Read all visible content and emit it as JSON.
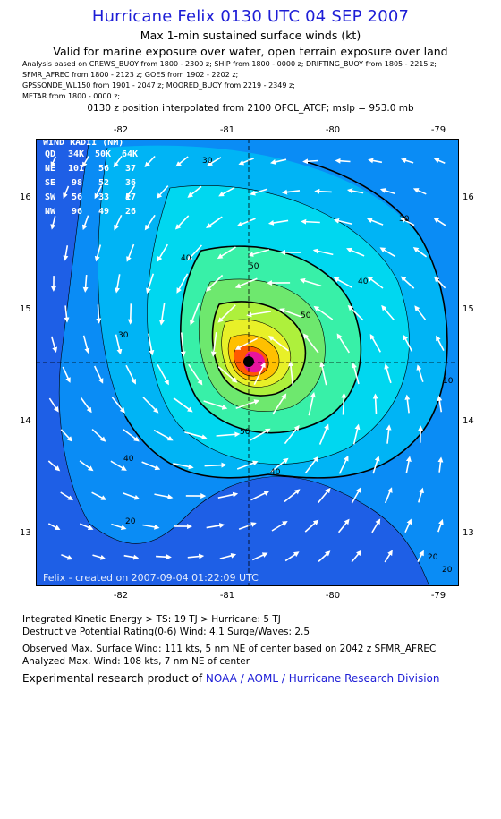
{
  "header": {
    "title": "Hurricane Felix 0130 UTC 04 SEP 2007",
    "subtitle": "Max 1-min sustained surface winds (kt)",
    "validity": "Valid for marine exposure over water, open terrain exposure over land",
    "sources": [
      "Analysis based on  CREWS_BUOY from 1800 - 2300 z;  SHIP from 1800 - 0000 z;  DRIFTING_BUOY from 1805 - 2215 z;",
      "SFMR_AFREC from 1800 - 2123 z;  GOES from 1902 - 2202 z;",
      "GPSSONDE_WL150 from 1901 - 2047 z;  MOORED_BUOY from 2219 - 2349 z;",
      "METAR from 1800 - 0000 z;"
    ],
    "position_note": "0130 z position interpolated from 2100 OFCL_ATCF; mslp = 953.0 mb"
  },
  "map": {
    "x_ticks": [
      "-82",
      "-81",
      "-80",
      "-79"
    ],
    "x_values": [
      -82,
      -81,
      -80,
      -79
    ],
    "y_ticks": [
      "16",
      "15",
      "14",
      "13"
    ],
    "y_values": [
      16,
      15,
      14,
      13
    ],
    "lon_range": [
      -82.4,
      -78.9
    ],
    "lat_range": [
      12.6,
      16.5
    ],
    "center": {
      "lon": -80.83,
      "lat": 14.55
    },
    "contour_labels": [
      "30",
      "30",
      "40",
      "40",
      "50",
      "50",
      "30",
      "50",
      "40",
      "20",
      "10",
      "20",
      "40",
      "20"
    ],
    "credit": "Felix - created on 2007-09-04 01:22:09 UTC",
    "colors": {
      "outer": "#1e5fe6",
      "c20": "#0a8cf5",
      "c30": "#00b4f5",
      "c40": "#00d7f0",
      "c50": "#38f0a8",
      "c60": "#6ee86e",
      "c70": "#aef03c",
      "c80": "#e8f028",
      "c90": "#ffc000",
      "c100": "#ff5a00",
      "core": "#e8149e"
    }
  },
  "wind_radii": {
    "title": "WIND RADII (NM)",
    "columns": [
      "QD",
      "34K",
      "50K",
      "64K"
    ],
    "rows": [
      [
        "NE",
        "101",
        "56",
        "37"
      ],
      [
        "SE",
        "98",
        "52",
        "36"
      ],
      [
        "SW",
        "56",
        "33",
        "17"
      ],
      [
        "NW",
        "96",
        "49",
        "26"
      ]
    ]
  },
  "footer": {
    "ike": "Integrated Kinetic Energy > TS: 19 TJ   > Hurricane: 5 TJ",
    "dp": "Destructive Potential Rating(0-6)   Wind: 4.1 Surge/Waves: 2.5",
    "observed": "Observed Max. Surface Wind: 111 kts, 5 nm NE of center based on 2042 z SFMR_AFREC",
    "analyzed": "Analyzed Max. Wind: 108 kts, 7 nm NE of center",
    "credit_prefix": "Experimental research product of ",
    "credit_link": "NOAA / AOML / Hurricane Research Division"
  }
}
